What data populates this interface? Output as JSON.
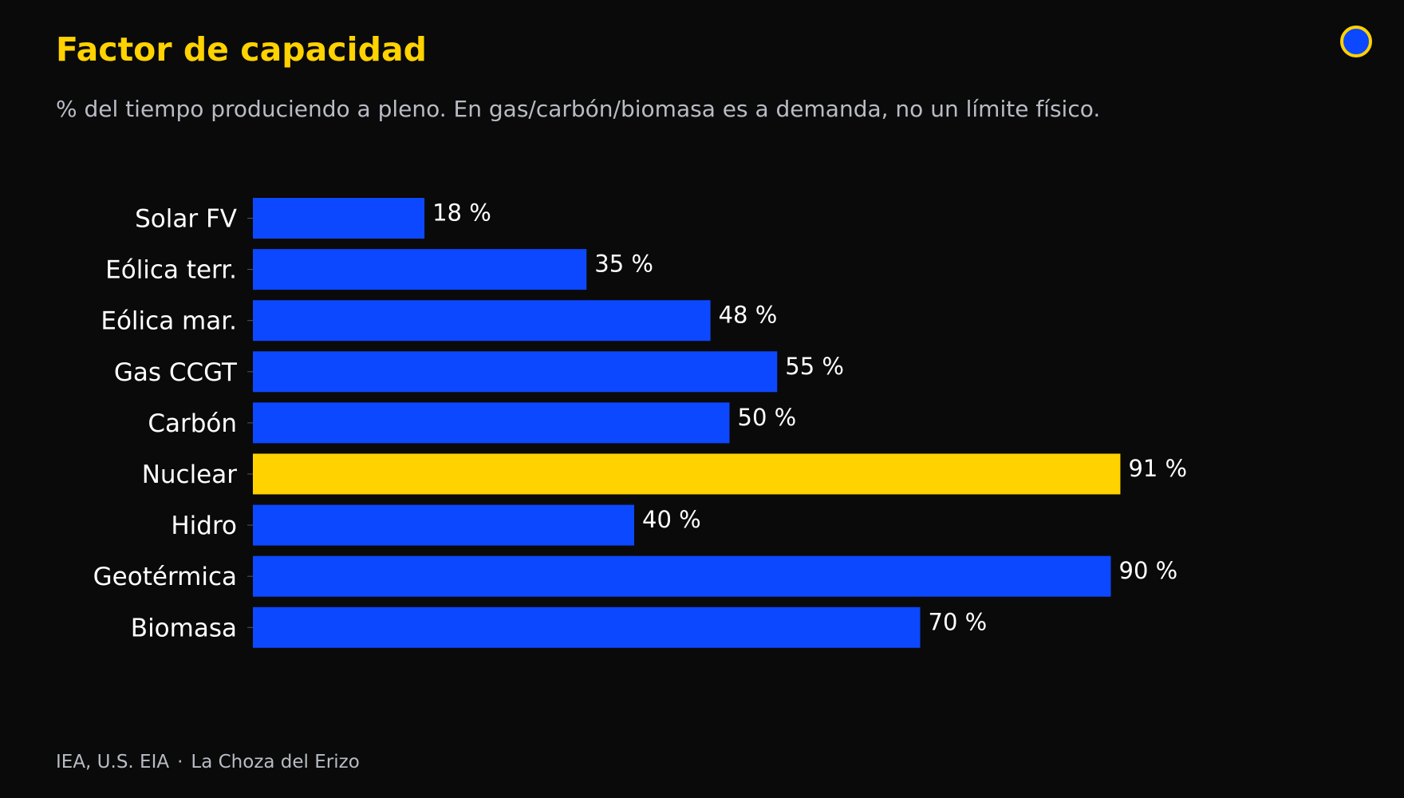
{
  "title": "Factor de capacidad",
  "subtitle": "% del tiempo produciendo a pleno. En gas/carbón/biomasa es a demanda, no un límite físico.",
  "footer": {
    "source": "IEA, U.S. EIA",
    "separator": "·",
    "brand": "La Choza del Erizo"
  },
  "colors": {
    "background": "#0a0a0a",
    "bar": "#0c48ff",
    "highlight": "#FFD200",
    "title": "#FFD200",
    "muted": "#b9bcc4"
  },
  "chart_data": {
    "type": "bar",
    "orientation": "horizontal",
    "categories": [
      "Solar FV",
      "Eólica terr.",
      "Eólica mar.",
      "Gas CCGT",
      "Carbón",
      "Nuclear",
      "Hidro",
      "Geotérmica",
      "Biomasa"
    ],
    "values": [
      18,
      35,
      48,
      55,
      50,
      91,
      40,
      90,
      70
    ],
    "value_labels": [
      "18 %",
      "35 %",
      "48 %",
      "55 %",
      "50 %",
      "91 %",
      "40 %",
      "90 %",
      "70 %"
    ],
    "highlight": "Nuclear",
    "unit": "%",
    "xlim": [
      0,
      100
    ],
    "grid": false,
    "xlabel": "",
    "ylabel": ""
  }
}
